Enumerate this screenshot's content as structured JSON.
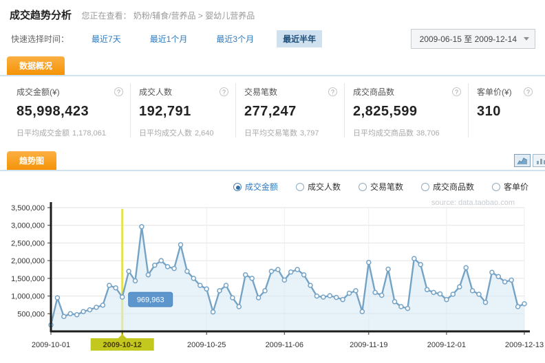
{
  "header": {
    "title": "成交趋势分析",
    "breadcrumb_prefix": "您正在查看：",
    "breadcrumb_path": "奶粉/辅食/营养品",
    "breadcrumb_sep": ">",
    "breadcrumb_leaf": "婴幼儿营养品"
  },
  "time_filter": {
    "label": "快速选择时间：",
    "options": [
      {
        "label": "最近7天",
        "selected": false
      },
      {
        "label": "最近1个月",
        "selected": false
      },
      {
        "label": "最近3个月",
        "selected": false
      },
      {
        "label": "最近半年",
        "selected": true
      }
    ],
    "date_range": "2009-06-15 至 2009-12-14",
    "dropdown_icon": "caret-down-icon"
  },
  "overview": {
    "tab_label": "数据概况",
    "help_icon": "?",
    "metrics": [
      {
        "title": "成交金额(¥)",
        "value": "85,998,423",
        "sub_label": "日平均成交金额",
        "sub_value": "1,178,061"
      },
      {
        "title": "成交人数",
        "value": "192,791",
        "sub_label": "日平均成交人数",
        "sub_value": "2,640"
      },
      {
        "title": "交易笔数",
        "value": "277,247",
        "sub_label": "日平均交易笔数",
        "sub_value": "3,797"
      },
      {
        "title": "成交商品数",
        "value": "2,825,599",
        "sub_label": "日平均成交商品数",
        "sub_value": "38,706"
      },
      {
        "title": "客单价(¥)",
        "value": "310",
        "sub_label": "",
        "sub_value": ""
      }
    ]
  },
  "trend": {
    "tab_label": "趋势图",
    "icons": [
      "area-chart-icon",
      "bar-chart-icon"
    ],
    "metric_options": [
      {
        "label": "成交金额",
        "selected": true
      },
      {
        "label": "成交人数",
        "selected": false
      },
      {
        "label": "交易笔数",
        "selected": false
      },
      {
        "label": "成交商品数",
        "selected": false
      },
      {
        "label": "客单价",
        "selected": false
      }
    ],
    "watermark": "source: data.taobao.com"
  },
  "chart_data": {
    "type": "line",
    "series_name": "成交金额",
    "unit": "¥",
    "ylim": [
      0,
      3500000
    ],
    "grid": true,
    "y_ticks": [
      {
        "v": 500000,
        "label": "500,000"
      },
      {
        "v": 1000000,
        "label": "1,000,000"
      },
      {
        "v": 1500000,
        "label": "1,500,000"
      },
      {
        "v": 2000000,
        "label": "2,000,000"
      },
      {
        "v": 2500000,
        "label": "2,500,000"
      },
      {
        "v": 3000000,
        "label": "3,000,000"
      },
      {
        "v": 3500000,
        "label": "3,500,000"
      }
    ],
    "x_tick_labels": [
      "2009-10-01",
      "2009-10-12",
      "2009-10-25",
      "2009-11-06",
      "2009-11-19",
      "2009-12-01",
      "2009-12-13"
    ],
    "x_tick_indices": [
      0,
      11,
      24,
      36,
      49,
      61,
      73
    ],
    "highlight": {
      "index": 11,
      "date": "2009-10-12",
      "value": 969963,
      "tooltip": "969,963"
    },
    "dates": [
      "2009-10-01",
      "2009-10-02",
      "2009-10-03",
      "2009-10-04",
      "2009-10-05",
      "2009-10-06",
      "2009-10-07",
      "2009-10-08",
      "2009-10-09",
      "2009-10-10",
      "2009-10-11",
      "2009-10-12",
      "2009-10-13",
      "2009-10-14",
      "2009-10-15",
      "2009-10-16",
      "2009-10-17",
      "2009-10-18",
      "2009-10-19",
      "2009-10-20",
      "2009-10-21",
      "2009-10-22",
      "2009-10-23",
      "2009-10-24",
      "2009-10-25",
      "2009-10-26",
      "2009-10-27",
      "2009-10-28",
      "2009-10-29",
      "2009-10-30",
      "2009-10-31",
      "2009-11-01",
      "2009-11-02",
      "2009-11-03",
      "2009-11-04",
      "2009-11-05",
      "2009-11-06",
      "2009-11-07",
      "2009-11-08",
      "2009-11-09",
      "2009-11-10",
      "2009-11-11",
      "2009-11-12",
      "2009-11-13",
      "2009-11-14",
      "2009-11-15",
      "2009-11-16",
      "2009-11-17",
      "2009-11-18",
      "2009-11-19",
      "2009-11-20",
      "2009-11-21",
      "2009-11-22",
      "2009-11-23",
      "2009-11-24",
      "2009-11-25",
      "2009-11-26",
      "2009-11-27",
      "2009-11-28",
      "2009-11-29",
      "2009-11-30",
      "2009-12-01",
      "2009-12-02",
      "2009-12-03",
      "2009-12-04",
      "2009-12-05",
      "2009-12-06",
      "2009-12-07",
      "2009-12-08",
      "2009-12-09",
      "2009-12-10",
      "2009-12-11",
      "2009-12-12",
      "2009-12-13"
    ],
    "values": [
      180000,
      950000,
      420000,
      500000,
      470000,
      560000,
      610000,
      680000,
      740000,
      1300000,
      1230000,
      969963,
      1700000,
      1430000,
      2960000,
      1600000,
      1870000,
      2000000,
      1830000,
      1780000,
      2450000,
      1700000,
      1500000,
      1300000,
      1200000,
      550000,
      1150000,
      1300000,
      950000,
      700000,
      1600000,
      1500000,
      950000,
      1150000,
      1700000,
      1750000,
      1450000,
      1680000,
      1750000,
      1600000,
      1300000,
      1000000,
      970000,
      1010000,
      960000,
      900000,
      1080000,
      1150000,
      560000,
      1950000,
      1100000,
      1020000,
      1760000,
      840000,
      700000,
      650000,
      2060000,
      1890000,
      1180000,
      1100000,
      1060000,
      900000,
      1050000,
      1260000,
      1800000,
      1150000,
      1050000,
      820000,
      1670000,
      1550000,
      1400000,
      1450000,
      700000,
      780000
    ],
    "colors": {
      "line": "#74a3c6",
      "marker_fill": "#ffffff",
      "area_fill": "#d9e9f5",
      "grid": "#e2e2e2",
      "vgrid": "#e9eef3",
      "axis": "#1c1c1c",
      "highlight_line": "#e4e13a",
      "highlight_label_bg": "#c3c81e",
      "tooltip_bg": "#5d96cc",
      "tab_orange": "#f59307",
      "link_blue": "#2b7bc3"
    }
  }
}
